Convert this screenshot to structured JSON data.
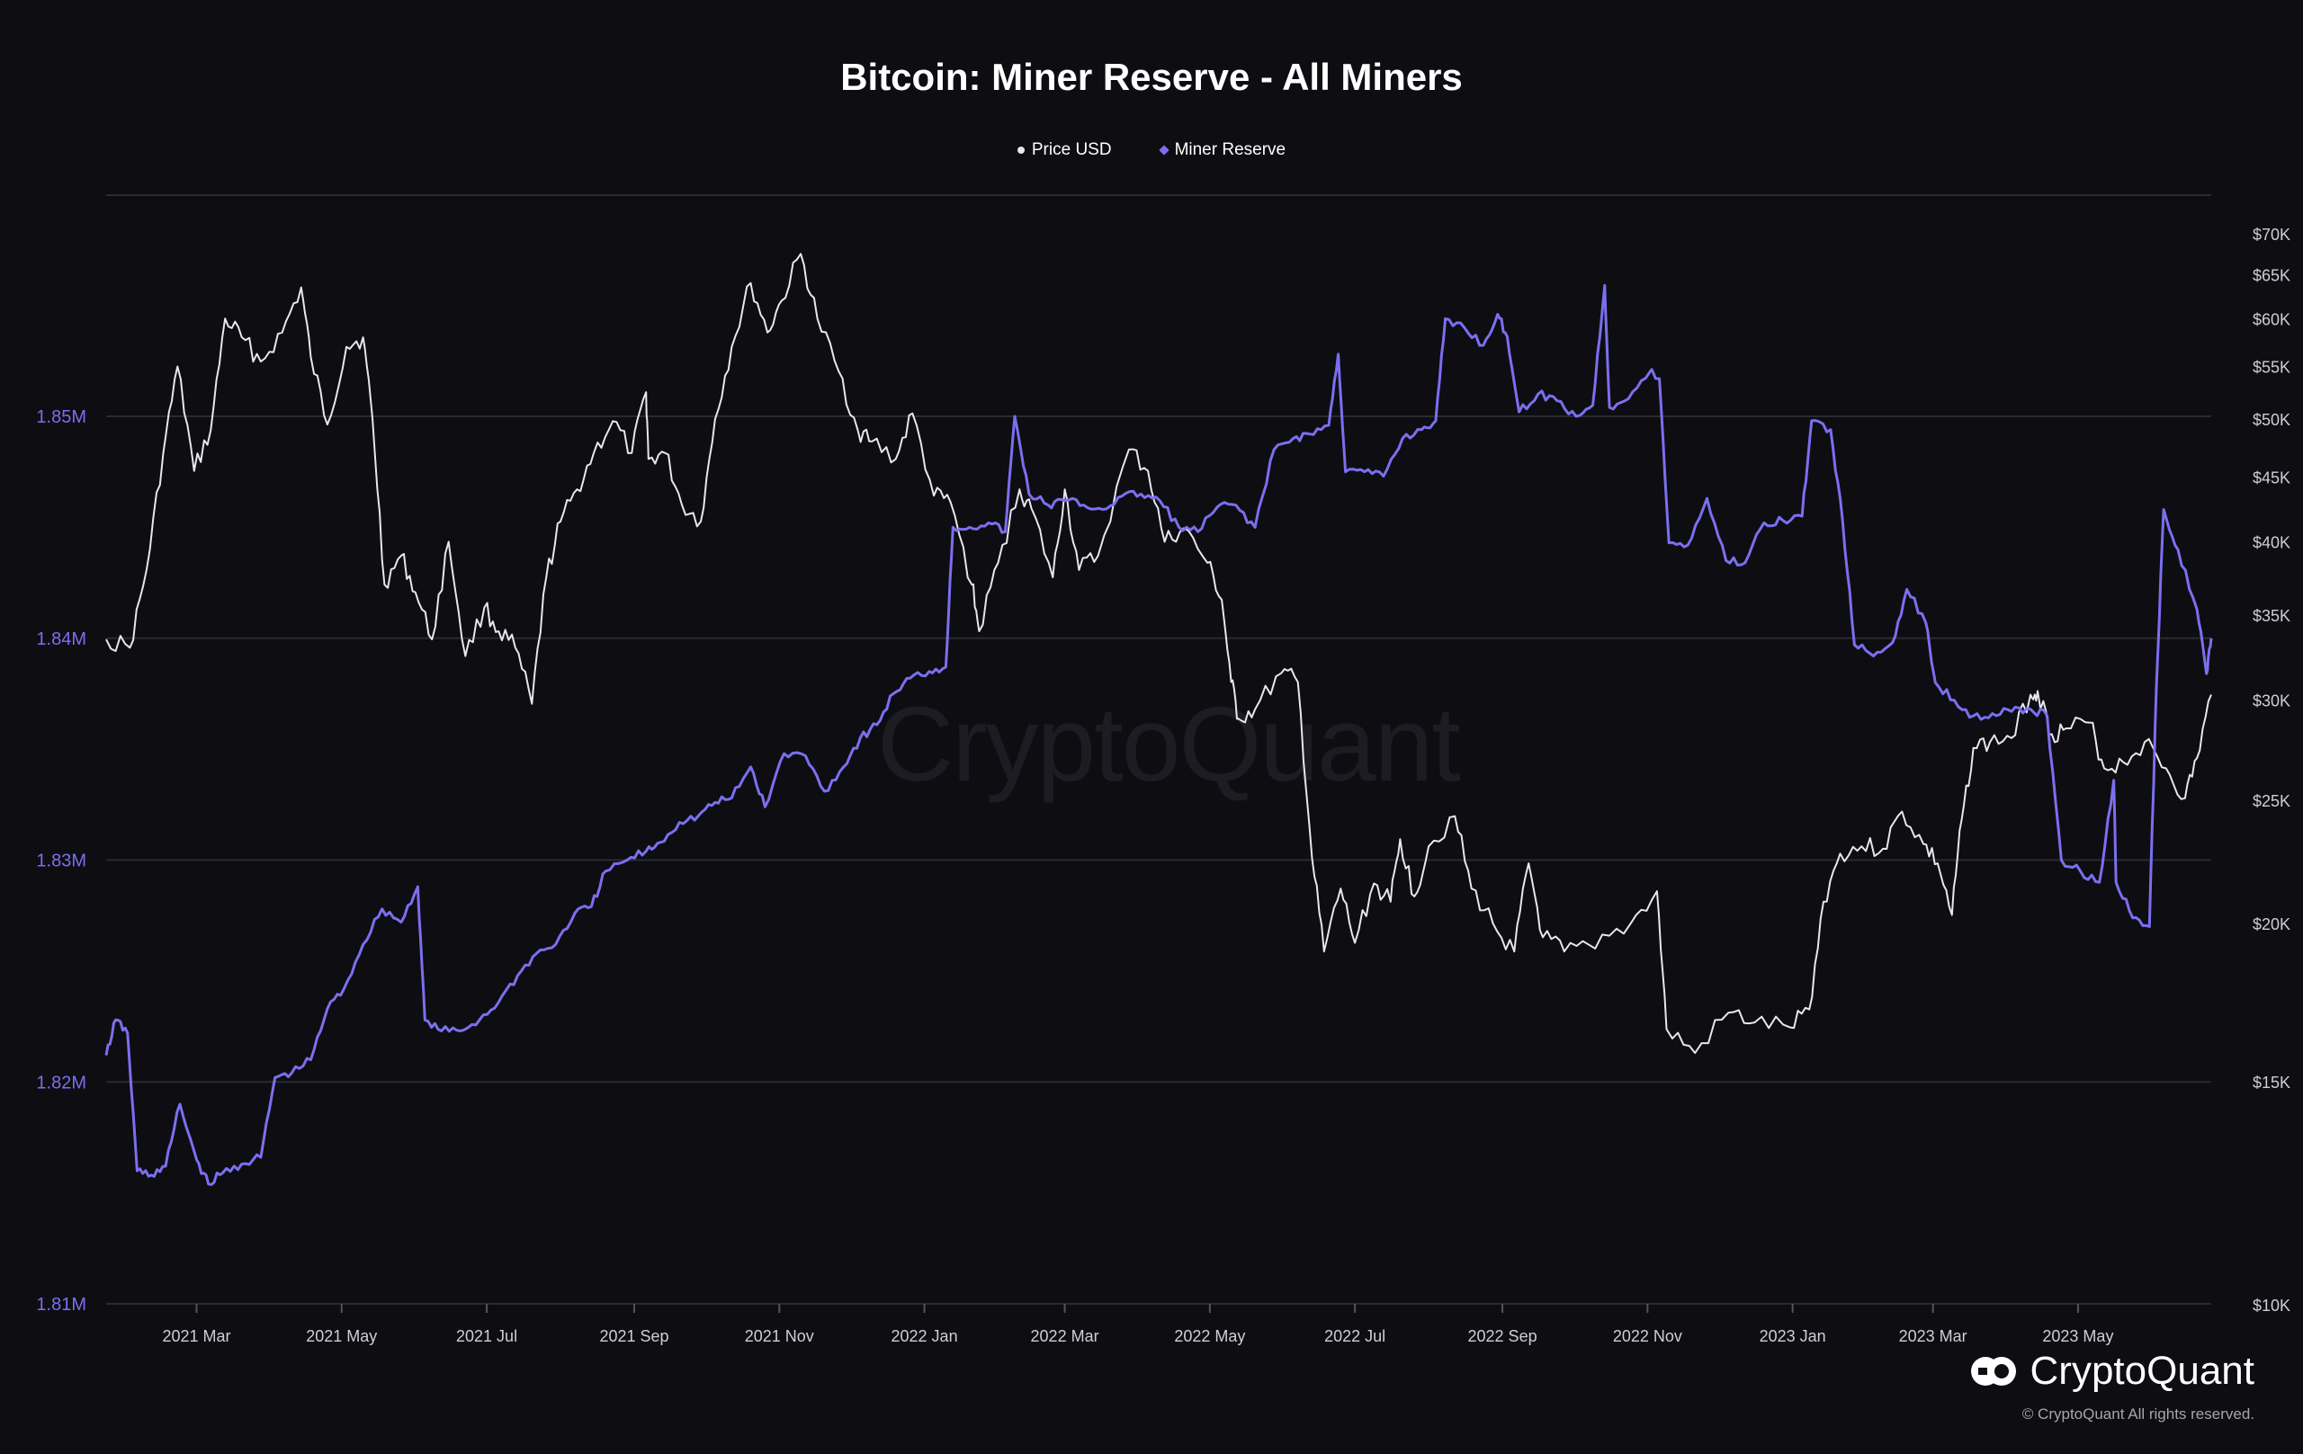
{
  "title": "Bitcoin: Miner Reserve - All Miners",
  "legend": {
    "price_label": "Price USD",
    "reserve_label": "Miner Reserve"
  },
  "watermark": "CryptoQuant",
  "brand": {
    "name": "CryptoQuant",
    "copyright": "© CryptoQuant All rights reserved."
  },
  "colors": {
    "background": "#0e0d11",
    "price": "#e8e6ee",
    "reserve": "#7b6ff0",
    "left_axis_text": "#7b6ff0",
    "right_axis_text": "#cfcdd6",
    "grid": "#2a2a30"
  },
  "chart_data": {
    "type": "line",
    "title": "Bitcoin: Miner Reserve - All Miners",
    "legend_position": "top-center",
    "grid": true,
    "x_tick_labels": [
      "2021 Mar",
      "2021 May",
      "2021 Jul",
      "2021 Sep",
      "2021 Nov",
      "2022 Jan",
      "2022 Mar",
      "2022 May",
      "2022 Jul",
      "2022 Sep",
      "2022 Nov",
      "2023 Jan",
      "2023 Mar",
      "2023 May"
    ],
    "x_range": [
      "2021-01-22",
      "2023-06-26"
    ],
    "y_left": {
      "ticks": [
        "1.81M",
        "1.82M",
        "1.83M",
        "1.84M",
        "1.85M"
      ],
      "range": [
        1810000,
        1860000
      ]
    },
    "y_right": {
      "scale": "log",
      "ticks": [
        "$10K",
        "$15K",
        "$20K",
        "$25K",
        "$30K",
        "$35K",
        "$40K",
        "$45K",
        "$50K",
        "$55K",
        "$60K",
        "$65K",
        "$70K"
      ],
      "range": [
        10000,
        72000
      ]
    },
    "series": [
      {
        "name": "Price USD",
        "axis": "right",
        "points": [
          [
            "2021-01-22",
            33500
          ],
          [
            "2021-02-01",
            33000
          ],
          [
            "2021-02-08",
            38000
          ],
          [
            "2021-02-15",
            47000
          ],
          [
            "2021-02-21",
            55000
          ],
          [
            "2021-02-28",
            45500
          ],
          [
            "2021-03-07",
            49000
          ],
          [
            "2021-03-13",
            60000
          ],
          [
            "2021-03-20",
            58000
          ],
          [
            "2021-03-28",
            55500
          ],
          [
            "2021-04-06",
            58500
          ],
          [
            "2021-04-14",
            63500
          ],
          [
            "2021-04-18",
            56000
          ],
          [
            "2021-04-25",
            49500
          ],
          [
            "2021-05-03",
            57000
          ],
          [
            "2021-05-10",
            58000
          ],
          [
            "2021-05-14",
            50000
          ],
          [
            "2021-05-19",
            37000
          ],
          [
            "2021-05-26",
            39000
          ],
          [
            "2021-06-01",
            36500
          ],
          [
            "2021-06-08",
            33500
          ],
          [
            "2021-06-15",
            40000
          ],
          [
            "2021-06-22",
            32500
          ],
          [
            "2021-06-30",
            35500
          ],
          [
            "2021-07-06",
            34000
          ],
          [
            "2021-07-13",
            33000
          ],
          [
            "2021-07-20",
            29800
          ],
          [
            "2021-07-26",
            37500
          ],
          [
            "2021-08-01",
            41500
          ],
          [
            "2021-08-08",
            44000
          ],
          [
            "2021-08-15",
            47000
          ],
          [
            "2021-08-23",
            49800
          ],
          [
            "2021-08-31",
            47000
          ],
          [
            "2021-09-06",
            52500
          ],
          [
            "2021-09-07",
            46500
          ],
          [
            "2021-09-14",
            47000
          ],
          [
            "2021-09-21",
            42800
          ],
          [
            "2021-09-29",
            41500
          ],
          [
            "2021-10-05",
            50000
          ],
          [
            "2021-10-12",
            57000
          ],
          [
            "2021-10-20",
            64000
          ],
          [
            "2021-10-27",
            58500
          ],
          [
            "2021-11-02",
            62000
          ],
          [
            "2021-11-10",
            67500
          ],
          [
            "2021-11-17",
            60000
          ],
          [
            "2021-11-26",
            54500
          ],
          [
            "2021-12-04",
            49000
          ],
          [
            "2021-12-10",
            48000
          ],
          [
            "2021-12-20",
            46500
          ],
          [
            "2021-12-27",
            50500
          ],
          [
            "2022-01-05",
            43500
          ],
          [
            "2022-01-12",
            43000
          ],
          [
            "2022-01-21",
            37000
          ],
          [
            "2022-01-24",
            34000
          ],
          [
            "2022-02-01",
            38500
          ],
          [
            "2022-02-10",
            44000
          ],
          [
            "2022-02-15",
            42500
          ],
          [
            "2022-02-24",
            37500
          ],
          [
            "2022-03-01",
            44000
          ],
          [
            "2022-03-07",
            38000
          ],
          [
            "2022-03-15",
            39000
          ],
          [
            "2022-03-28",
            47300
          ],
          [
            "2022-04-05",
            45500
          ],
          [
            "2022-04-12",
            40000
          ],
          [
            "2022-04-20",
            41000
          ],
          [
            "2022-04-30",
            38500
          ],
          [
            "2022-05-06",
            36000
          ],
          [
            "2022-05-10",
            31000
          ],
          [
            "2022-05-13",
            29000
          ],
          [
            "2022-05-20",
            29500
          ],
          [
            "2022-05-31",
            31500
          ],
          [
            "2022-06-07",
            31000
          ],
          [
            "2022-06-13",
            22500
          ],
          [
            "2022-06-18",
            19000
          ],
          [
            "2022-06-25",
            21300
          ],
          [
            "2022-07-01",
            19300
          ],
          [
            "2022-07-09",
            21500
          ],
          [
            "2022-07-16",
            20800
          ],
          [
            "2022-07-20",
            23300
          ],
          [
            "2022-07-26",
            21000
          ],
          [
            "2022-08-01",
            23000
          ],
          [
            "2022-08-12",
            24300
          ],
          [
            "2022-08-19",
            21300
          ],
          [
            "2022-08-28",
            20000
          ],
          [
            "2022-09-06",
            19000
          ],
          [
            "2022-09-12",
            22300
          ],
          [
            "2022-09-18",
            19500
          ],
          [
            "2022-09-27",
            19000
          ],
          [
            "2022-10-10",
            19100
          ],
          [
            "2022-10-25",
            20000
          ],
          [
            "2022-11-05",
            21200
          ],
          [
            "2022-11-09",
            16500
          ],
          [
            "2022-11-21",
            15800
          ],
          [
            "2022-12-05",
            17000
          ],
          [
            "2022-12-16",
            16700
          ],
          [
            "2022-12-31",
            16550
          ],
          [
            "2023-01-08",
            17100
          ],
          [
            "2023-01-14",
            20800
          ],
          [
            "2023-01-21",
            22700
          ],
          [
            "2023-01-30",
            23000
          ],
          [
            "2023-02-08",
            22900
          ],
          [
            "2023-02-16",
            24500
          ],
          [
            "2023-02-25",
            23100
          ],
          [
            "2023-03-03",
            22300
          ],
          [
            "2023-03-09",
            20300
          ],
          [
            "2023-03-13",
            24100
          ],
          [
            "2023-03-18",
            27500
          ],
          [
            "2023-03-25",
            27800
          ],
          [
            "2023-04-03",
            28000
          ],
          [
            "2023-04-11",
            30300
          ],
          [
            "2023-04-14",
            30500
          ],
          [
            "2023-04-20",
            28200
          ],
          [
            "2023-04-26",
            28500
          ],
          [
            "2023-05-06",
            28800
          ],
          [
            "2023-05-12",
            26500
          ],
          [
            "2023-05-20",
            26800
          ],
          [
            "2023-05-29",
            27800
          ],
          [
            "2023-06-07",
            26500
          ],
          [
            "2023-06-15",
            25100
          ],
          [
            "2023-06-20",
            27000
          ],
          [
            "2023-06-26",
            30300
          ]
        ]
      },
      {
        "name": "Miner Reserve",
        "axis": "left",
        "points": [
          [
            "2021-01-22",
            1821200
          ],
          [
            "2021-01-26",
            1822800
          ],
          [
            "2021-01-31",
            1822200
          ],
          [
            "2021-02-04",
            1816000
          ],
          [
            "2021-02-10",
            1815800
          ],
          [
            "2021-02-16",
            1816200
          ],
          [
            "2021-02-22",
            1819000
          ],
          [
            "2021-03-01",
            1816500
          ],
          [
            "2021-03-06",
            1815400
          ],
          [
            "2021-03-12",
            1815900
          ],
          [
            "2021-03-20",
            1816300
          ],
          [
            "2021-03-28",
            1816600
          ],
          [
            "2021-04-03",
            1820200
          ],
          [
            "2021-04-10",
            1820400
          ],
          [
            "2021-04-18",
            1821000
          ],
          [
            "2021-04-25",
            1823300
          ],
          [
            "2021-05-02",
            1824200
          ],
          [
            "2021-05-10",
            1826200
          ],
          [
            "2021-05-18",
            1827800
          ],
          [
            "2021-05-26",
            1827200
          ],
          [
            "2021-06-02",
            1828800
          ],
          [
            "2021-06-05",
            1822800
          ],
          [
            "2021-06-12",
            1822300
          ],
          [
            "2021-06-20",
            1822300
          ],
          [
            "2021-06-28",
            1822800
          ],
          [
            "2021-07-06",
            1823600
          ],
          [
            "2021-07-14",
            1824800
          ],
          [
            "2021-07-22",
            1825800
          ],
          [
            "2021-07-30",
            1826200
          ],
          [
            "2021-08-07",
            1827600
          ],
          [
            "2021-08-14",
            1827900
          ],
          [
            "2021-08-20",
            1829500
          ],
          [
            "2021-08-29",
            1830000
          ],
          [
            "2021-09-06",
            1830400
          ],
          [
            "2021-09-12",
            1830800
          ],
          [
            "2021-09-20",
            1831700
          ],
          [
            "2021-09-28",
            1832000
          ],
          [
            "2021-10-05",
            1832600
          ],
          [
            "2021-10-12",
            1832800
          ],
          [
            "2021-10-20",
            1834200
          ],
          [
            "2021-10-26",
            1832400
          ],
          [
            "2021-11-03",
            1834800
          ],
          [
            "2021-11-12",
            1834700
          ],
          [
            "2021-11-20",
            1833100
          ],
          [
            "2021-11-28",
            1834200
          ],
          [
            "2021-12-05",
            1835500
          ],
          [
            "2021-12-12",
            1836100
          ],
          [
            "2021-12-19",
            1837500
          ],
          [
            "2021-12-26",
            1838200
          ],
          [
            "2022-01-03",
            1838500
          ],
          [
            "2022-01-10",
            1838700
          ],
          [
            "2022-01-13",
            1845000
          ],
          [
            "2022-01-20",
            1845000
          ],
          [
            "2022-01-28",
            1845200
          ],
          [
            "2022-02-04",
            1844800
          ],
          [
            "2022-02-08",
            1850000
          ],
          [
            "2022-02-14",
            1846500
          ],
          [
            "2022-02-22",
            1846000
          ],
          [
            "2022-03-01",
            1846200
          ],
          [
            "2022-03-09",
            1846000
          ],
          [
            "2022-03-17",
            1845800
          ],
          [
            "2022-03-25",
            1846400
          ],
          [
            "2022-04-02",
            1846500
          ],
          [
            "2022-04-10",
            1846200
          ],
          [
            "2022-04-18",
            1845000
          ],
          [
            "2022-04-26",
            1844800
          ],
          [
            "2022-05-04",
            1845900
          ],
          [
            "2022-05-12",
            1846000
          ],
          [
            "2022-05-20",
            1845000
          ],
          [
            "2022-05-28",
            1848500
          ],
          [
            "2022-06-05",
            1849000
          ],
          [
            "2022-06-12",
            1849200
          ],
          [
            "2022-06-20",
            1849600
          ],
          [
            "2022-06-24",
            1852800
          ],
          [
            "2022-06-27",
            1847500
          ],
          [
            "2022-07-05",
            1847500
          ],
          [
            "2022-07-13",
            1847300
          ],
          [
            "2022-07-21",
            1849000
          ],
          [
            "2022-07-29",
            1849400
          ],
          [
            "2022-08-04",
            1849800
          ],
          [
            "2022-08-08",
            1854400
          ],
          [
            "2022-08-16",
            1854000
          ],
          [
            "2022-08-24",
            1853200
          ],
          [
            "2022-08-30",
            1854600
          ],
          [
            "2022-09-03",
            1853600
          ],
          [
            "2022-09-08",
            1850200
          ],
          [
            "2022-09-16",
            1851000
          ],
          [
            "2022-09-24",
            1850700
          ],
          [
            "2022-10-02",
            1850000
          ],
          [
            "2022-10-09",
            1850500
          ],
          [
            "2022-10-14",
            1855900
          ],
          [
            "2022-10-16",
            1850400
          ],
          [
            "2022-10-24",
            1850800
          ],
          [
            "2022-11-02",
            1852000
          ],
          [
            "2022-11-06",
            1851700
          ],
          [
            "2022-11-10",
            1844300
          ],
          [
            "2022-11-18",
            1844200
          ],
          [
            "2022-11-26",
            1846300
          ],
          [
            "2022-12-04",
            1843500
          ],
          [
            "2022-12-12",
            1843400
          ],
          [
            "2022-12-20",
            1845200
          ],
          [
            "2022-12-28",
            1845300
          ],
          [
            "2023-01-05",
            1845500
          ],
          [
            "2023-01-09",
            1849800
          ],
          [
            "2023-01-17",
            1849400
          ],
          [
            "2023-01-22",
            1845300
          ],
          [
            "2023-01-27",
            1839700
          ],
          [
            "2023-02-04",
            1839200
          ],
          [
            "2023-02-12",
            1839800
          ],
          [
            "2023-02-18",
            1842200
          ],
          [
            "2023-02-26",
            1840700
          ],
          [
            "2023-03-02",
            1838000
          ],
          [
            "2023-03-10",
            1837200
          ],
          [
            "2023-03-18",
            1836500
          ],
          [
            "2023-03-26",
            1836600
          ],
          [
            "2023-04-03",
            1836700
          ],
          [
            "2023-04-11",
            1836800
          ],
          [
            "2023-04-18",
            1836500
          ],
          [
            "2023-04-24",
            1830000
          ],
          [
            "2023-05-02",
            1829500
          ],
          [
            "2023-05-10",
            1829000
          ],
          [
            "2023-05-16",
            1833600
          ],
          [
            "2023-05-17",
            1829000
          ],
          [
            "2023-05-24",
            1827400
          ],
          [
            "2023-05-31",
            1827000
          ],
          [
            "2023-06-03",
            1838000
          ],
          [
            "2023-06-06",
            1845800
          ],
          [
            "2023-06-12",
            1844000
          ],
          [
            "2023-06-20",
            1841300
          ],
          [
            "2023-06-24",
            1838400
          ],
          [
            "2023-06-26",
            1840000
          ]
        ]
      }
    ]
  }
}
